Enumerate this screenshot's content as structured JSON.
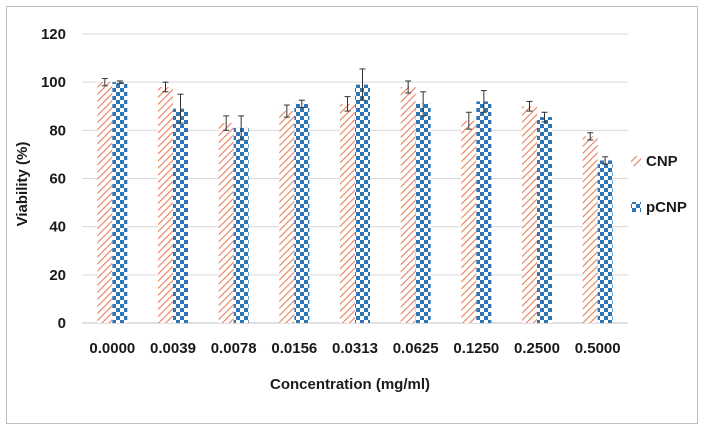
{
  "chart_data": {
    "type": "bar",
    "xlabel": "Concentration (mg/ml)",
    "ylabel": "Viability (%)",
    "ylim": [
      0,
      120
    ],
    "yticks": [
      0,
      20,
      40,
      60,
      80,
      100,
      120
    ],
    "grid": true,
    "legend_position": "right",
    "categories": [
      "0.0000",
      "0.0039",
      "0.0078",
      "0.0156",
      "0.0313",
      "0.0625",
      "0.1250",
      "0.2500",
      "0.5000"
    ],
    "series": [
      {
        "name": "CNP",
        "color": "#e8805a",
        "pattern": "diagonal-stripes",
        "values": [
          100,
          98,
          83,
          88,
          91,
          98,
          84,
          90,
          77.5
        ],
        "errors": [
          1.5,
          2,
          3,
          2.5,
          3,
          2.5,
          3.5,
          2,
          1.5
        ]
      },
      {
        "name": "pCNP",
        "color": "#2e75b6",
        "pattern": "checkerboard",
        "values": [
          100,
          89,
          81,
          91,
          99,
          91,
          92,
          85.5,
          67.5
        ],
        "errors": [
          0.5,
          6,
          5,
          1.5,
          6.5,
          5,
          4.5,
          2,
          1.5
        ]
      }
    ]
  }
}
